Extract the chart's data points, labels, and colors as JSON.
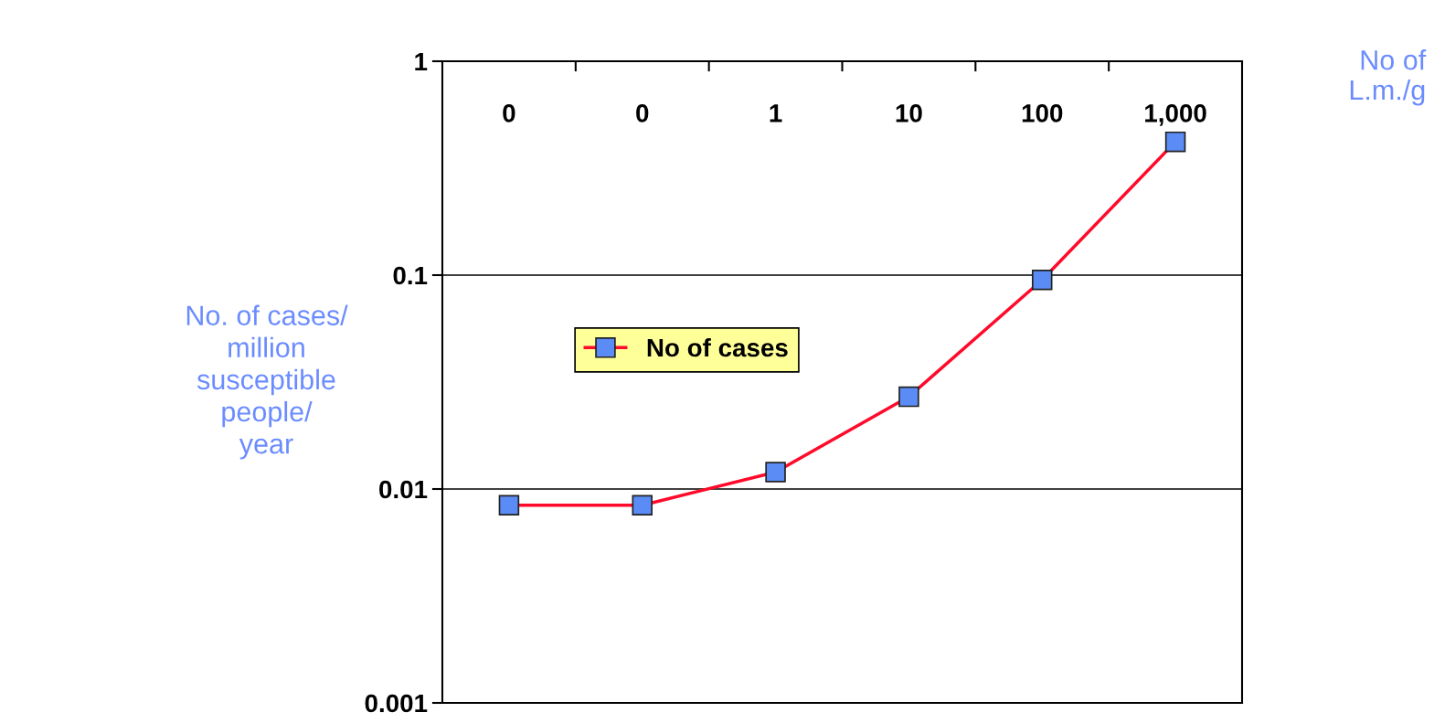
{
  "chart_data": {
    "type": "line",
    "xlabel": "No of\nL.m./g",
    "ylabel": "No. of cases/\nmillion\nsusceptible\npeople/\nyear",
    "categories": [
      "0",
      "0",
      "1",
      "10",
      "100",
      "1,000"
    ],
    "series": [
      {
        "name": "No of cases",
        "color": "#ff0a2a",
        "values": [
          0.0084,
          0.0084,
          0.012,
          0.027,
          0.095,
          0.42
        ]
      }
    ],
    "log": "y",
    "ylim": [
      0.001,
      1
    ],
    "yticks": [
      0.001,
      0.01,
      0.1,
      1
    ],
    "grid": "y",
    "legend": "center left",
    "marker": "square",
    "line_style": "solid"
  }
}
